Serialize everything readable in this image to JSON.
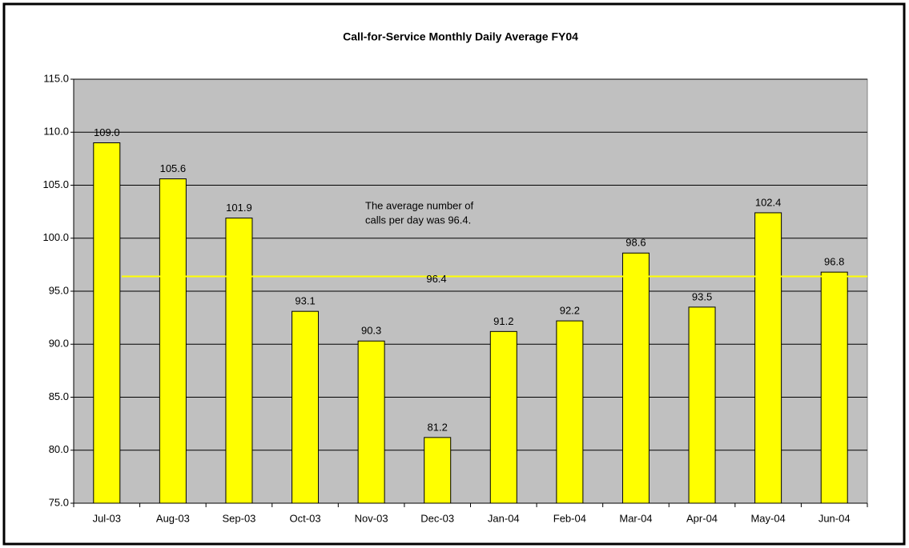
{
  "chart_data": {
    "type": "bar",
    "title": "Call-for-Service Monthly Daily Average FY04",
    "categories": [
      "Jul-03",
      "Aug-03",
      "Sep-03",
      "Oct-03",
      "Nov-03",
      "Dec-03",
      "Jan-04",
      "Feb-04",
      "Mar-04",
      "Apr-04",
      "May-04",
      "Jun-04"
    ],
    "values": [
      109.0,
      105.6,
      101.9,
      93.1,
      90.3,
      81.2,
      91.2,
      92.2,
      98.6,
      93.5,
      102.4,
      96.8
    ],
    "value_labels": [
      "109.0",
      "105.6",
      "101.9",
      "93.1",
      "90.3",
      "81.2",
      "91.2",
      "92.2",
      "98.6",
      "93.5",
      "102.4",
      "96.8"
    ],
    "color": "#ffff00",
    "average": 96.4,
    "average_color": "#ffff00",
    "annotation": [
      "The average number of",
      "calls per day was 96.4."
    ],
    "ylim": [
      75,
      115
    ],
    "yticks": [
      {
        "value": 75,
        "label": "75.0"
      },
      {
        "value": 80,
        "label": "80.0"
      },
      {
        "value": 85,
        "label": "85.0"
      },
      {
        "value": 90,
        "label": "90.0"
      },
      {
        "value": 95,
        "label": "95.0"
      },
      {
        "value": 100,
        "label": "100.0"
      },
      {
        "value": 105,
        "label": "105.0"
      },
      {
        "value": 110,
        "label": "110.0"
      },
      {
        "value": 115,
        "label": "115.0"
      }
    ],
    "grid": true,
    "plot_background": "#c0c0c0"
  }
}
